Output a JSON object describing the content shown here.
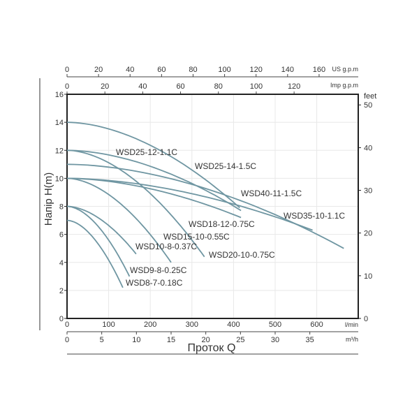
{
  "chart_data": {
    "type": "line",
    "title": "",
    "ylabel": "Напір H(m)",
    "xlabel": "Проток Q",
    "ylim": [
      0,
      16
    ],
    "xlim_l_min": [
      0,
      700
    ],
    "grid": true,
    "y_ticks": [
      0,
      2,
      4,
      6,
      8,
      10,
      12,
      14,
      16
    ],
    "x_ticks_l_min": [
      0,
      100,
      200,
      300,
      400,
      500,
      600
    ],
    "x_unit_l_min": "l/min",
    "x_ticks_m3h": [
      0,
      5,
      10,
      15,
      20,
      25,
      30,
      35
    ],
    "x_unit_m3h": "m³/h",
    "top_ticks_us_gpm": [
      0,
      20,
      40,
      60,
      80,
      100,
      120,
      140,
      160
    ],
    "top_unit_us_gpm": "US g.p.m",
    "top_ticks_imp_gpm": [
      0,
      20,
      40,
      60,
      80,
      100,
      120
    ],
    "top_unit_imp_gpm": "Imp g.p.m",
    "right_ticks_feet": [
      0,
      10,
      20,
      30,
      40,
      50
    ],
    "right_unit": "feet",
    "curve_color": "#6f96a2",
    "series": [
      {
        "name": "WSD25-14-1.5C",
        "h0": 14,
        "end": [
          415,
          7.9
        ]
      },
      {
        "name": "WSD25-12-1.1C",
        "h0": 12,
        "end": [
          418,
          7.7
        ]
      },
      {
        "name": "WSD40-11-1.5C",
        "h0": 11,
        "end": [
          665,
          5.0
        ]
      },
      {
        "name": "WSD35-10-1.1C",
        "h0": 10,
        "end": [
          590,
          6.3
        ]
      },
      {
        "name": "WSD18-12-0.75C",
        "h0": 12,
        "end": [
          330,
          4.4
        ]
      },
      {
        "name": "WSD20-10-0.75C",
        "h0": 10,
        "end": [
          418,
          7.2
        ]
      },
      {
        "name": "WSD15-10-0.55C",
        "h0": 10,
        "end": [
          250,
          4.0
        ]
      },
      {
        "name": "WSD10-8-0.37C",
        "h0": 8,
        "end": [
          166,
          4.6
        ]
      },
      {
        "name": "WSD9-8-0.25C",
        "h0": 8,
        "end": [
          150,
          3.0
        ]
      },
      {
        "name": "WSD8-7-0.18C",
        "h0": 7,
        "end": [
          134,
          2.2
        ]
      }
    ]
  }
}
